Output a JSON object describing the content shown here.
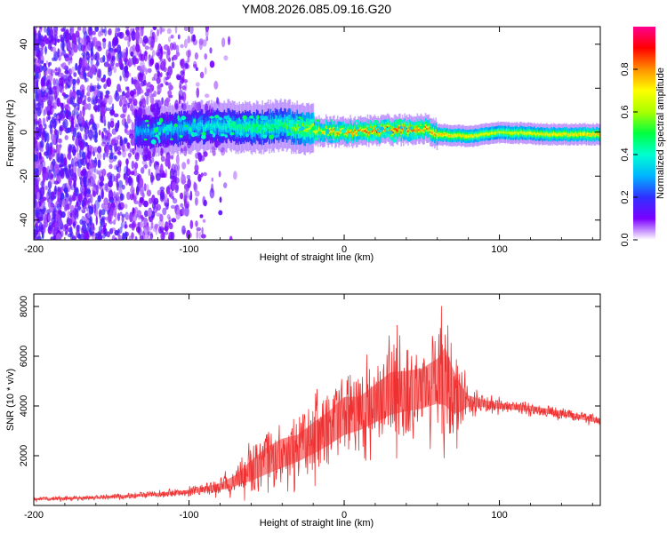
{
  "figure": {
    "title": "YM08.2026.085.09.16.G20"
  },
  "chart_data": [
    {
      "type": "heatmap",
      "title": "YM08.2026.085.09.16.G20",
      "xlabel": "Height of straight line (km)",
      "ylabel": "Frequency (Hz)",
      "xlim": [
        -200,
        165
      ],
      "ylim": [
        -49,
        48
      ],
      "xticks": [
        -200,
        -100,
        0,
        100
      ],
      "xtick_labels": [
        "-200",
        "-100",
        "0",
        "100"
      ],
      "yticks": [
        40,
        20,
        0,
        -20,
        -40
      ],
      "ytick_labels": [
        "40",
        "20",
        "0",
        "-20",
        "-40"
      ],
      "colorbar": {
        "label": "Normalized spectral amplitude",
        "range": [
          0,
          1
        ],
        "ticks": [
          0.0,
          0.2,
          0.4,
          0.6,
          0.8
        ],
        "tick_labels": [
          "0.0",
          "0.2",
          "0.4",
          "0.6",
          "0.8"
        ],
        "colormap": [
          "#ffffff",
          "#7a00ff",
          "#3030ff",
          "#00b4ff",
          "#00ffd0",
          "#00ff40",
          "#a8ff00",
          "#ffff00",
          "#ff9000",
          "#ff0000",
          "#ff0090"
        ]
      },
      "ridge": {
        "description": "Main energy band centered near 0 Hz",
        "x": [
          -130,
          -100,
          -80,
          -60,
          -40,
          -20,
          0,
          20,
          40,
          50,
          60,
          80,
          100,
          130,
          165
        ],
        "center_hz": [
          0,
          2,
          3,
          2,
          3,
          1,
          0,
          1,
          1,
          2,
          -1,
          -2,
          0,
          -1,
          -1
        ],
        "peak_amplitude": [
          0.3,
          0.35,
          0.4,
          0.45,
          0.5,
          0.7,
          0.8,
          0.85,
          0.85,
          0.8,
          0.75,
          0.7,
          0.65,
          0.7,
          0.75
        ]
      }
    },
    {
      "type": "line",
      "title": "",
      "xlabel": "Height of straight line (km)",
      "ylabel": "SNR (10 * v/v)",
      "xlim": [
        -200,
        165
      ],
      "ylim": [
        0,
        8500
      ],
      "xticks": [
        -200,
        -100,
        0,
        100
      ],
      "xtick_labels": [
        "-200",
        "-100",
        "0",
        "100"
      ],
      "yticks": [
        2000,
        4000,
        6000,
        8000
      ],
      "ytick_labels": [
        "2000",
        "4000",
        "6000",
        "8000"
      ],
      "color": "#f03030",
      "series": [
        {
          "name": "SNR",
          "x": [
            -200,
            -180,
            -160,
            -140,
            -120,
            -100,
            -80,
            -70,
            -60,
            -50,
            -40,
            -30,
            -20,
            -10,
            0,
            10,
            20,
            30,
            40,
            50,
            60,
            65,
            70,
            75,
            80,
            90,
            100,
            120,
            140,
            165
          ],
          "y": [
            250,
            280,
            320,
            380,
            450,
            550,
            750,
            1000,
            1400,
            1800,
            2100,
            2300,
            2700,
            3100,
            3600,
            3700,
            4100,
            4500,
            4600,
            4700,
            5000,
            5200,
            4600,
            4300,
            4200,
            4100,
            4000,
            3900,
            3700,
            3400
          ],
          "spread": [
            80,
            90,
            100,
            110,
            130,
            160,
            300,
            500,
            900,
            1200,
            1300,
            1200,
            1400,
            1500,
            1700,
            1500,
            1700,
            1900,
            1800,
            1800,
            2000,
            2600,
            2000,
            1200,
            500,
            300,
            250,
            230,
            220,
            200
          ]
        }
      ]
    }
  ]
}
